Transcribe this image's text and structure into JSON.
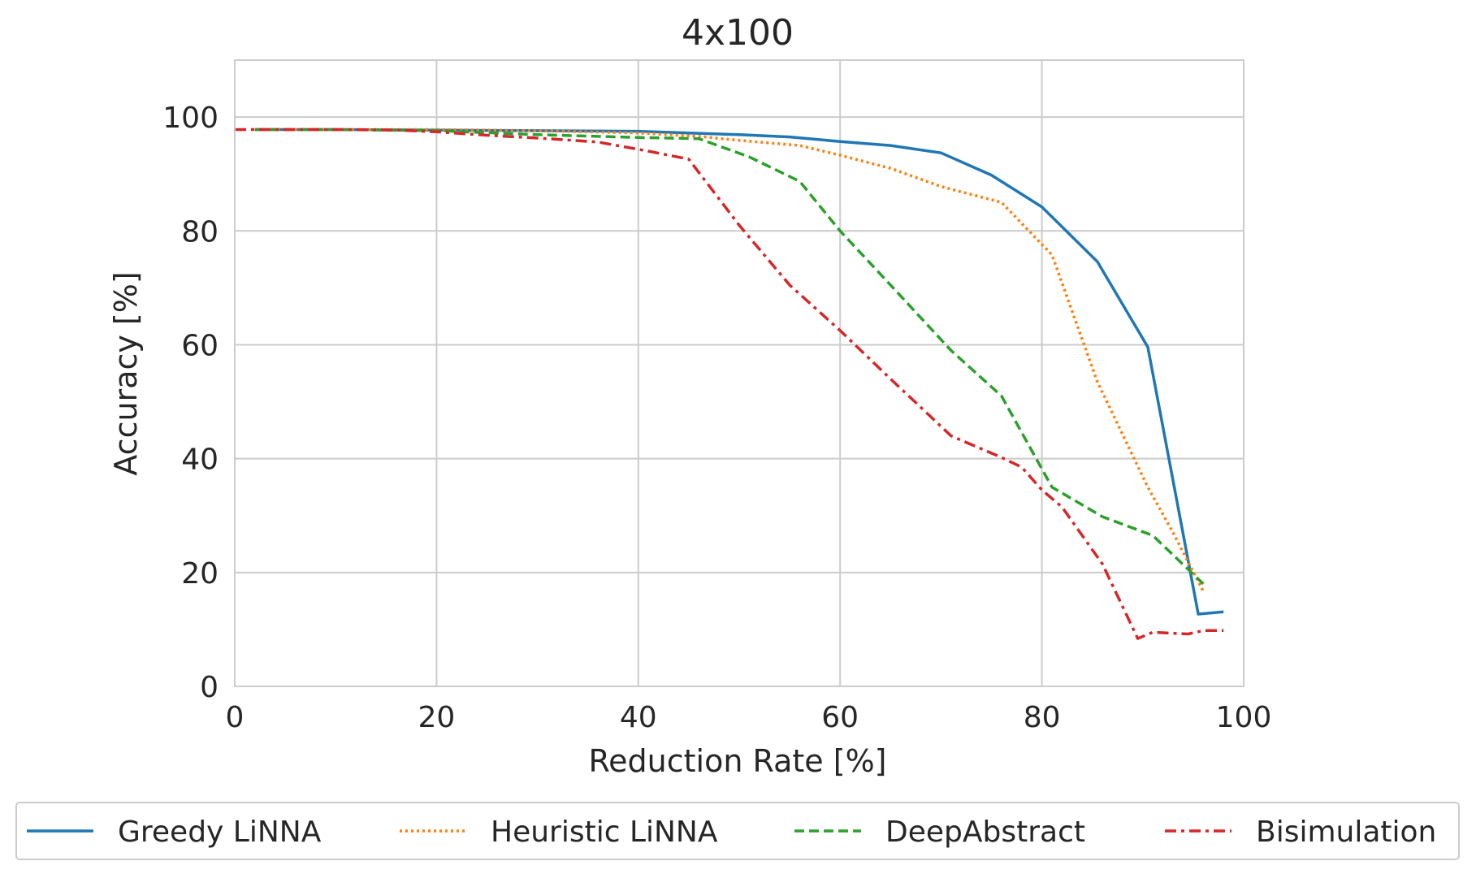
{
  "chart_data": {
    "type": "line",
    "title": "4x100",
    "xlabel": "Reduction Rate [%]",
    "ylabel": "Accuracy [%]",
    "xlim": [
      0,
      100
    ],
    "ylim": [
      0,
      110
    ],
    "xticks": [
      0,
      20,
      40,
      60,
      80,
      100
    ],
    "yticks": [
      0,
      20,
      40,
      60,
      80,
      100
    ],
    "grid": true,
    "legend_position": "bottom-outside",
    "series": [
      {
        "name": "Greedy LiNNA",
        "color": "#1f77b4",
        "dash": "solid",
        "x": [
          2,
          10,
          20,
          30,
          40,
          45,
          50,
          55,
          60,
          65,
          70,
          75,
          80,
          85.5,
          90.5,
          95.5,
          98
        ],
        "y": [
          97.8,
          97.8,
          97.7,
          97.6,
          97.5,
          97.2,
          96.9,
          96.5,
          95.7,
          95.0,
          93.7,
          89.8,
          84.2,
          74.6,
          59.6,
          12.7,
          13.1
        ]
      },
      {
        "name": "Heuristic LiNNA",
        "color": "#ff7f0e",
        "dash": "dotted",
        "x": [
          2,
          10,
          20,
          30,
          40,
          46,
          50,
          56,
          60,
          65,
          70,
          76,
          81,
          85.5,
          90.5,
          93,
          96
        ],
        "y": [
          97.8,
          97.8,
          97.8,
          97.6,
          97.2,
          96.6,
          95.9,
          95.0,
          93.3,
          91.0,
          87.8,
          85.0,
          75.8,
          53.5,
          35.0,
          27.0,
          16.7
        ]
      },
      {
        "name": "DeepAbstract",
        "color": "#2ca02c",
        "dash": "dashed",
        "x": [
          2,
          10,
          20,
          30,
          40,
          46,
          51,
          56,
          60,
          65,
          71,
          76,
          81,
          86,
          91,
          96
        ],
        "y": [
          97.8,
          97.8,
          97.6,
          96.9,
          96.4,
          96.2,
          93.0,
          88.7,
          80.0,
          70.5,
          59.0,
          51.0,
          35.0,
          29.8,
          26.5,
          18.0
        ]
      },
      {
        "name": "Bisimulation",
        "color": "#d62728",
        "dash": "dashdot",
        "x": [
          0,
          5,
          11,
          16,
          20,
          25,
          31,
          36,
          41,
          45,
          50,
          55,
          60,
          65,
          71,
          76,
          78,
          80,
          82,
          86,
          89.5,
          91,
          94.5,
          96,
          98
        ],
        "y": [
          97.8,
          97.8,
          97.8,
          97.7,
          97.4,
          96.8,
          96.2,
          95.6,
          94.0,
          92.6,
          81.0,
          70.5,
          62.5,
          54.0,
          44.0,
          40.2,
          38.5,
          34.5,
          31.5,
          21.5,
          8.4,
          9.5,
          9.2,
          9.8,
          9.8
        ]
      }
    ]
  }
}
